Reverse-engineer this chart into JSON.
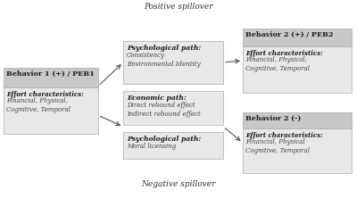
{
  "bg_color": "#ffffff",
  "box_color_dark_header": "#c8c8c8",
  "box_color_light_body": "#e8e8e8",
  "box_color_mid": "#d8d8d8",
  "title_top": "Positive spillover",
  "title_bottom": "Negative spillover",
  "box1_title": "Behavior 1 (+) / PEB1",
  "box1_sub_bold": "Effort characteristics:",
  "box1_sub": "Financial, Physical,\nCognitive, Temporal",
  "box2_title": "Psychological path:",
  "box2_sub": "Consistency\nEnvironmental Identity",
  "box3_title": "Behavior 2 (+) / PEB2",
  "box3_sub_bold": "Effort characteristics:",
  "box3_sub": "Financial, Physical;\nCognitive, Temporal",
  "box4_title": "Economic path:",
  "box4_sub": "Direct rebound effect\nIndirect rebound effect",
  "box5_title": "Psychological path:",
  "box5_sub": "Moral licensing",
  "box6_title": "Behavior 2 (-)",
  "box6_sub_bold": "Effort characteristics:",
  "box6_sub": "Financial, Physical\nCognitive, Temporal",
  "arrow_color": "#555555",
  "text_dark": "#1a1a1a",
  "text_mid": "#333333",
  "text_light": "#444444"
}
